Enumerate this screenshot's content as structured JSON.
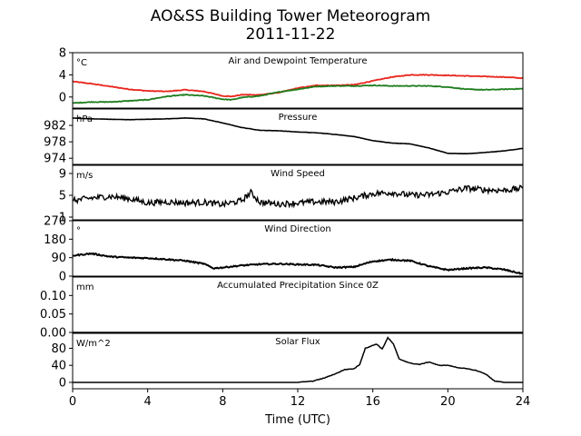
{
  "figure": {
    "title": "AO&SS Building Tower Meteorogram",
    "subtitle": "2011-11-22",
    "xlabel": "Time (UTC)"
  },
  "chart_data": [
    {
      "type": "line",
      "title": "Air and Dewpoint Temperature",
      "unit": "°C",
      "xlim": [
        0,
        24
      ],
      "ylim": [
        -2,
        8
      ],
      "yticks": [
        0,
        4,
        8
      ],
      "series": [
        {
          "color": "#e8251c",
          "x": [
            0,
            1,
            2,
            3,
            4,
            5,
            6,
            7,
            7.5,
            8,
            8.5,
            9,
            10,
            11,
            12,
            13,
            14,
            15,
            16,
            17,
            18,
            19,
            20,
            21,
            22,
            23,
            24
          ],
          "y": [
            2.8,
            2.4,
            1.9,
            1.4,
            1.1,
            1.0,
            1.3,
            1.0,
            0.6,
            0.2,
            0.1,
            0.4,
            0.4,
            0.8,
            1.6,
            2.1,
            2.1,
            2.2,
            2.9,
            3.6,
            4.0,
            4.0,
            3.9,
            3.8,
            3.7,
            3.6,
            3.4
          ]
        },
        {
          "color": "#1d7d1d",
          "x": [
            0,
            1,
            2,
            3,
            4,
            5,
            6,
            7,
            7.5,
            8,
            8.5,
            9,
            10,
            11,
            12,
            13,
            14,
            15,
            16,
            17,
            18,
            19,
            20,
            21,
            22,
            23,
            24
          ],
          "y": [
            -1.1,
            -0.9,
            -0.9,
            -0.7,
            -0.5,
            0.1,
            0.4,
            0.2,
            -0.1,
            -0.4,
            -0.5,
            -0.1,
            0.2,
            0.9,
            1.4,
            1.9,
            2.0,
            2.0,
            2.1,
            2.0,
            2.0,
            2.0,
            1.8,
            1.4,
            1.3,
            1.4,
            1.5
          ]
        }
      ]
    },
    {
      "type": "line",
      "title": "Pressure",
      "unit": "hPa",
      "xlim": [
        0,
        24
      ],
      "ylim": [
        972.5,
        986
      ],
      "yticks": [
        974,
        978,
        982
      ],
      "series": [
        {
          "color": "#000000",
          "x": [
            0,
            1,
            2,
            3,
            4,
            5,
            6,
            7,
            8,
            9,
            10,
            11,
            12,
            13,
            14,
            15,
            16,
            17,
            18,
            19,
            20,
            21,
            22,
            23,
            24
          ],
          "y": [
            983.8,
            983.6,
            983.5,
            983.4,
            983.5,
            983.6,
            983.8,
            983.6,
            982.6,
            981.5,
            980.8,
            980.7,
            980.4,
            980.2,
            979.8,
            979.3,
            978.3,
            977.7,
            977.5,
            976.5,
            975.2,
            975.1,
            975.4,
            975.8,
            976.4
          ]
        }
      ]
    },
    {
      "type": "line",
      "title": "Wind Speed",
      "unit": "m/s",
      "xlim": [
        0,
        24
      ],
      "ylim": [
        0.5,
        10.5
      ],
      "yticks": [
        1,
        5,
        9
      ],
      "series": [
        {
          "color": "#000000",
          "x": [
            0,
            1,
            2,
            3,
            4,
            5,
            6,
            7,
            8,
            9,
            9.5,
            10,
            11,
            12,
            13,
            14,
            15,
            16,
            17,
            18,
            19,
            20,
            21,
            22,
            23,
            24
          ],
          "y": [
            4.0,
            4.5,
            4.8,
            4.4,
            3.6,
            3.8,
            3.6,
            3.7,
            3.3,
            4.0,
            5.5,
            3.7,
            3.4,
            3.6,
            3.8,
            3.8,
            4.5,
            5.3,
            5.5,
            5.0,
            5.1,
            5.6,
            6.3,
            6.0,
            5.9,
            6.3
          ]
        }
      ]
    },
    {
      "type": "line",
      "title": "Wind Direction",
      "unit": "°",
      "xlim": [
        0,
        24
      ],
      "ylim": [
        0,
        270
      ],
      "yticks": [
        0,
        90,
        180,
        270
      ],
      "series": [
        {
          "color": "#000000",
          "x": [
            0,
            1,
            2,
            3,
            4,
            5,
            6,
            7,
            7.5,
            8,
            9,
            10,
            11,
            12,
            13,
            14,
            15,
            16,
            17,
            18,
            19,
            20,
            21,
            22,
            23,
            24
          ],
          "y": [
            100,
            110,
            95,
            90,
            88,
            82,
            75,
            60,
            38,
            42,
            52,
            58,
            60,
            57,
            55,
            42,
            45,
            72,
            80,
            75,
            48,
            30,
            38,
            42,
            32,
            10
          ]
        }
      ]
    },
    {
      "type": "line",
      "title": "Accumulated Precipitation Since 0Z",
      "unit": "mm",
      "xlim": [
        0,
        24
      ],
      "ylim": [
        0,
        0.15
      ],
      "yticks": [
        0.0,
        0.05,
        0.1
      ],
      "yticklabels": [
        "0.00",
        "0.05",
        "0.10"
      ],
      "series": [
        {
          "color": "#000000",
          "x": [
            0,
            24
          ],
          "y": [
            0,
            0
          ]
        }
      ]
    },
    {
      "type": "line",
      "title": "Solar Flux",
      "unit": "W/m^2",
      "xlim": [
        0,
        24
      ],
      "ylim": [
        -15,
        115
      ],
      "yticks": [
        0,
        40,
        80
      ],
      "series": [
        {
          "color": "#000000",
          "x": [
            0,
            6,
            12,
            12.8,
            13.4,
            14,
            14.5,
            15,
            15.3,
            15.6,
            15.9,
            16.2,
            16.5,
            16.8,
            17.1,
            17.4,
            17.7,
            18,
            18.5,
            19,
            19.5,
            20,
            20.5,
            21,
            21.5,
            22,
            22.5,
            23,
            24
          ],
          "y": [
            0,
            0,
            0,
            3,
            10,
            20,
            30,
            32,
            42,
            80,
            85,
            90,
            78,
            105,
            90,
            55,
            50,
            45,
            42,
            48,
            40,
            40,
            35,
            32,
            28,
            20,
            3,
            0,
            0
          ]
        }
      ]
    }
  ],
  "xaxis": {
    "ticks": [
      0,
      4,
      8,
      12,
      16,
      20,
      24
    ]
  }
}
